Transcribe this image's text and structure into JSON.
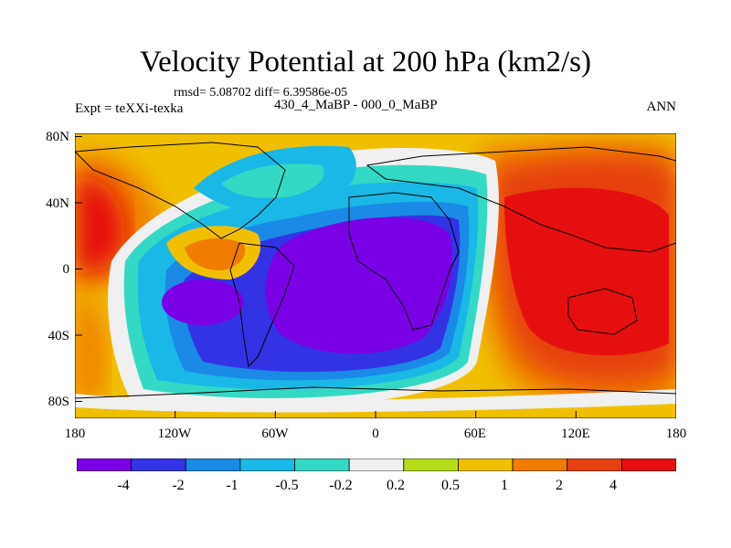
{
  "title": "Velocity Potential at 200 hPa (km2/s)",
  "stats": "rmsd= 5.08702 diff= 6.39586e-05",
  "left_label": "Expt = teXXi-texka",
  "center_label": "430_4_MaBP - 000_0_MaBP",
  "right_label": "ANN",
  "y_ticks": [
    "80N",
    "40N",
    "0",
    "40S",
    "80S"
  ],
  "x_ticks": [
    "180",
    "120W",
    "60W",
    "0",
    "60E",
    "120E",
    "180"
  ],
  "colorbar": {
    "labels": [
      "-4",
      "-2",
      "-1",
      "-0.5",
      "-0.2",
      "0.2",
      "0.5",
      "1",
      "2",
      "4"
    ],
    "colors": [
      "#7a00e6",
      "#3333e6",
      "#1a8ae6",
      "#1ab8e6",
      "#33d9c4",
      "#f0f0f0",
      "#b5dd1a",
      "#f0c000",
      "#f07c00",
      "#e64010",
      "#e60f0f"
    ]
  },
  "chart_data": {
    "type": "heatmap",
    "title": "Velocity Potential at 200 hPa (km2/s)",
    "x_range": [
      -180,
      180
    ],
    "y_range": [
      -90,
      90
    ],
    "x_ticks": [
      "180",
      "120W",
      "60W",
      "0",
      "60E",
      "120E",
      "180"
    ],
    "y_ticks": [
      "80N",
      "40N",
      "0",
      "40S",
      "80S"
    ],
    "levels": [
      -4,
      -2,
      -1,
      -0.5,
      -0.2,
      0.2,
      0.5,
      1,
      2,
      4
    ],
    "features": [
      {
        "name": "negative center",
        "lon": 10,
        "lat": 0,
        "min_level": -4
      },
      {
        "name": "positive center",
        "lon": 130,
        "lat": 0,
        "max_level": 4
      },
      {
        "name": "positive lobe",
        "lon": -170,
        "lat": 20,
        "max_level": 4
      },
      {
        "name": "secondary negative",
        "lon": -95,
        "lat": -20,
        "min_level": -4
      }
    ]
  }
}
